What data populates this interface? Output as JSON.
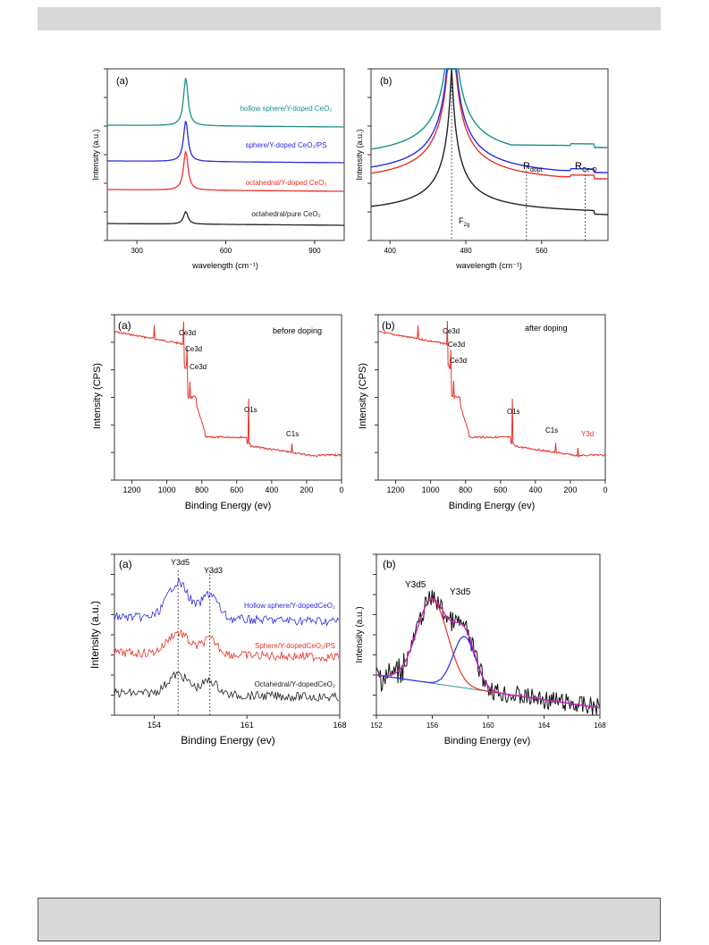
{
  "colors": {
    "black": "#222222",
    "red": "#e8322b",
    "blue": "#2b2bde",
    "teal": "#1a8f86",
    "magenta": "#d020c8",
    "baseline_green": "#2a9a8e",
    "header_band": "#d8d8d8"
  },
  "chart_data": [
    {
      "id": "raman-a",
      "type": "line",
      "panel_label": "(a)",
      "xlabel": "wavelength (cm⁻¹)",
      "ylabel": "Intensity (a.u.)",
      "xlim": [
        200,
        1000
      ],
      "xticks": [
        300,
        600,
        900
      ],
      "series": [
        {
          "name": "octahedral/pure CeO₂",
          "color": "#222222",
          "offset": 0,
          "baseline": 0.1,
          "peak_x": 465,
          "peak_h": 0.35,
          "width": 9
        },
        {
          "name": "octahedral/Y-doped CeO₂",
          "color": "#e8322b",
          "offset": 1,
          "baseline": 0.25,
          "peak_x": 465,
          "peak_h": 1.1,
          "width": 9
        },
        {
          "name": "sphere/Y-doped CeO₂/PS",
          "color": "#2b2bde",
          "offset": 2,
          "baseline": 0.35,
          "peak_x": 465,
          "peak_h": 1.15,
          "width": 9
        },
        {
          "name": "hollow sphere/Y-doped CeO₂",
          "color": "#1a8f86",
          "offset": 3,
          "baseline": 0.45,
          "peak_x": 465,
          "peak_h": 1.35,
          "width": 9
        }
      ]
    },
    {
      "id": "raman-b",
      "type": "line",
      "panel_label": "(b)",
      "xlabel": "wavelength (cm⁻¹)",
      "ylabel": "Intensity (a.u.)",
      "xlim": [
        380,
        630
      ],
      "xticks": [
        400,
        480,
        560
      ],
      "annotations": [
        "F₂g",
        "R_dopt",
        "R_Ce-O"
      ],
      "annotation_labels": {
        "f2g": "F",
        "f2g_sub": "2g",
        "rdopt": "R",
        "rdopt_sub": "dopt",
        "rceo": "R",
        "rceo_sub": "Ce-O"
      },
      "vlines": [
        465,
        544,
        606
      ],
      "series": [
        {
          "name": "octahedral/pure CeO₂",
          "color": "#222222",
          "level": 0.05
        },
        {
          "name": "octahedral/Y-doped CeO₂",
          "color": "#e8322b",
          "level": 0.2
        },
        {
          "name": "sphere/Y-doped CeO₂/PS",
          "color": "#2b2bde",
          "level": 0.28
        },
        {
          "name": "hollow sphere/Y-doped CeO₂",
          "color": "#1a8f86",
          "level": 0.38
        }
      ]
    },
    {
      "id": "xps-survey-a",
      "type": "line",
      "panel_label": "(a)",
      "title": "before doping",
      "xlabel": "Binding Energy (ev)",
      "ylabel": "Intensity (CPS)",
      "xlim": [
        1300,
        0
      ],
      "xticks": [
        1200,
        1000,
        800,
        600,
        400,
        200,
        0
      ],
      "peaks": [
        "Ce3d",
        "Ce3d",
        "Ce3d",
        "O1s",
        "C1s"
      ],
      "color": "#e8322b"
    },
    {
      "id": "xps-survey-b",
      "type": "line",
      "panel_label": "(b)",
      "title": "after doping",
      "xlabel": "Binding Energy (ev)",
      "ylabel": "Intensity (CPS)",
      "xlim": [
        1300,
        0
      ],
      "xticks": [
        1200,
        1000,
        800,
        600,
        400,
        200,
        0
      ],
      "peaks": [
        "Ce3d",
        "Ce3d",
        "Ce3d",
        "O1s",
        "C1s",
        "Y3d"
      ],
      "color": "#e8322b"
    },
    {
      "id": "xps-y3d-a",
      "type": "line",
      "panel_label": "(a)",
      "xlabel": "Binding Energy (ev)",
      "ylabel": "Intensity (a.u.)",
      "xlim": [
        151,
        168
      ],
      "xticks": [
        154,
        161,
        168
      ],
      "peak_labels": [
        "Y3d5",
        "Y3d3"
      ],
      "vlines": [
        155.8,
        158.2
      ],
      "series": [
        {
          "name": "Octahedral/Y-dopedCeO₂",
          "color": "#222222",
          "offset": 0
        },
        {
          "name": "Sphere/Y-dopedCeO₂/PS",
          "color": "#e8322b",
          "offset": 1
        },
        {
          "name": "Hollow sphere/Y-dopedCeO₂",
          "color": "#2b2bde",
          "offset": 2
        }
      ]
    },
    {
      "id": "xps-y3d-b",
      "type": "line",
      "panel_label": "(b)",
      "xlabel": "Binding Energy (ev)",
      "ylabel": "Intensity (a.u.)",
      "xlim": [
        152,
        168
      ],
      "xticks": [
        152,
        156,
        160,
        164,
        168
      ],
      "peak_labels": [
        "Y3d5",
        "Y3d5"
      ],
      "fit_peaks": [
        {
          "center": 156.0,
          "height": 0.78,
          "sigma": 1.1,
          "color": "#e8322b"
        },
        {
          "center": 158.3,
          "height": 0.48,
          "sigma": 0.8,
          "color": "#2b2bde"
        }
      ]
    }
  ]
}
